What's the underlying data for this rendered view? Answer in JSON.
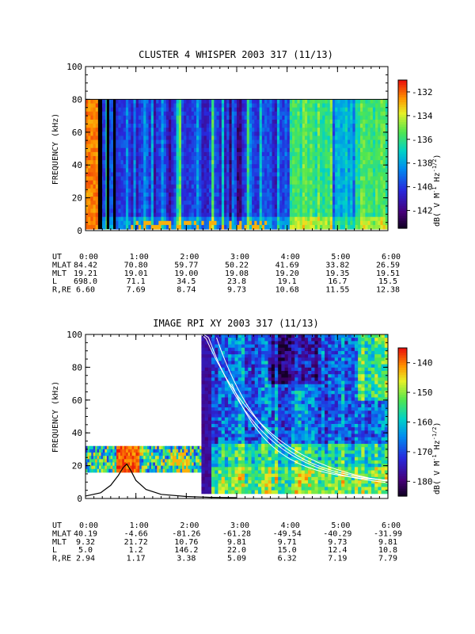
{
  "chart_data": [
    {
      "type": "heatmap",
      "title": "CLUSTER 4 WHISPER 2003 317 (11/13)",
      "ylabel": "FREQUENCY (kHz)",
      "ylim": [
        0,
        100
      ],
      "yticks": [
        "0",
        "20",
        "40",
        "60",
        "80",
        "100"
      ],
      "xlim_hours": [
        0,
        6
      ],
      "xticks": [
        "0:00",
        "1:00",
        "2:00",
        "3:00",
        "4:00",
        "5:00",
        "6:00"
      ],
      "colorbar": {
        "label": "dB( V M",
        "label_sup1": "-1",
        "label_mid": " Hz",
        "label_sup2": "-1/2",
        "label_end": ")",
        "range": [
          -143.5,
          -131
        ],
        "ticks": [
          "-132",
          "-134",
          "-136",
          "-138",
          "-140",
          "-142"
        ]
      },
      "data_extent_khz": [
        0,
        80
      ],
      "ephemeris": {
        "labels": [
          "UT",
          "MLAT",
          "MLT",
          "L",
          "R,RE"
        ],
        "rows": [
          [
            "0:00",
            "1:00",
            "2:00",
            "3:00",
            "4:00",
            "5:00",
            "6:00"
          ],
          [
            "84.42",
            "70.80",
            "59.77",
            "50.22",
            "41.69",
            "33.82",
            "26.59"
          ],
          [
            "19.21",
            "19.01",
            "19.00",
            "19.08",
            "19.20",
            "19.35",
            "19.51"
          ],
          [
            "698.0",
            "71.1",
            "34.5",
            "23.8",
            "19.1",
            "16.7",
            "15.5"
          ],
          [
            "6.60",
            "7.69",
            "8.74",
            "9.73",
            "10.68",
            "11.55",
            "12.38"
          ]
        ]
      }
    },
    {
      "type": "heatmap",
      "title": "IMAGE RPI XY 2003 317 (11/13)",
      "ylabel": "FREQUENCY (kHz)",
      "ylim": [
        0,
        100
      ],
      "yticks": [
        "0",
        "20",
        "40",
        "60",
        "80",
        "100"
      ],
      "xlim_hours": [
        0,
        6
      ],
      "xticks": [
        "0:00",
        "1:00",
        "2:00",
        "3:00",
        "4:00",
        "5:00",
        "6:00"
      ],
      "colorbar": {
        "label": "dB( V M",
        "label_sup1": "-1",
        "label_mid": " Hz",
        "label_sup2": "-1/2",
        "label_end": ")",
        "range": [
          -185,
          -135
        ],
        "ticks": [
          "-140",
          "-150",
          "-160",
          "-170",
          "-180"
        ]
      },
      "segments": [
        {
          "t_start": 0.0,
          "t_end": 2.3,
          "f_min": 16,
          "f_max": 32
        },
        {
          "t_start": 2.3,
          "t_end": 6.0,
          "f_min": 3,
          "f_max": 100
        }
      ],
      "plasma_frequency_curve": {
        "t": [
          0.0,
          0.3,
          0.5,
          0.65,
          0.75,
          0.82,
          0.9,
          1.0,
          1.2,
          1.5,
          2.0,
          2.5,
          3.0
        ],
        "f": [
          1.5,
          3.5,
          8,
          14,
          19,
          21,
          17,
          11,
          5.5,
          2.5,
          1.2,
          0.7,
          0.5
        ]
      },
      "ephemeris": {
        "labels": [
          "UT",
          "MLAT",
          "MLT",
          "L",
          "R,RE"
        ],
        "rows": [
          [
            "0:00",
            "1:00",
            "2:00",
            "3:00",
            "4:00",
            "5:00",
            "6:00"
          ],
          [
            "40.19",
            "-4.66",
            "-81.26",
            "-61.28",
            "-49.54",
            "-40.29",
            "-31.99"
          ],
          [
            "9.32",
            "21.72",
            "10.76",
            "9.81",
            "9.71",
            "9.73",
            "9.81"
          ],
          [
            "5.0",
            "1.2",
            "146.2",
            "22.0",
            "15.0",
            "12.4",
            "10.8"
          ],
          [
            "2.94",
            "1.17",
            "3.38",
            "5.09",
            "6.32",
            "7.19",
            "7.79"
          ]
        ]
      }
    }
  ]
}
